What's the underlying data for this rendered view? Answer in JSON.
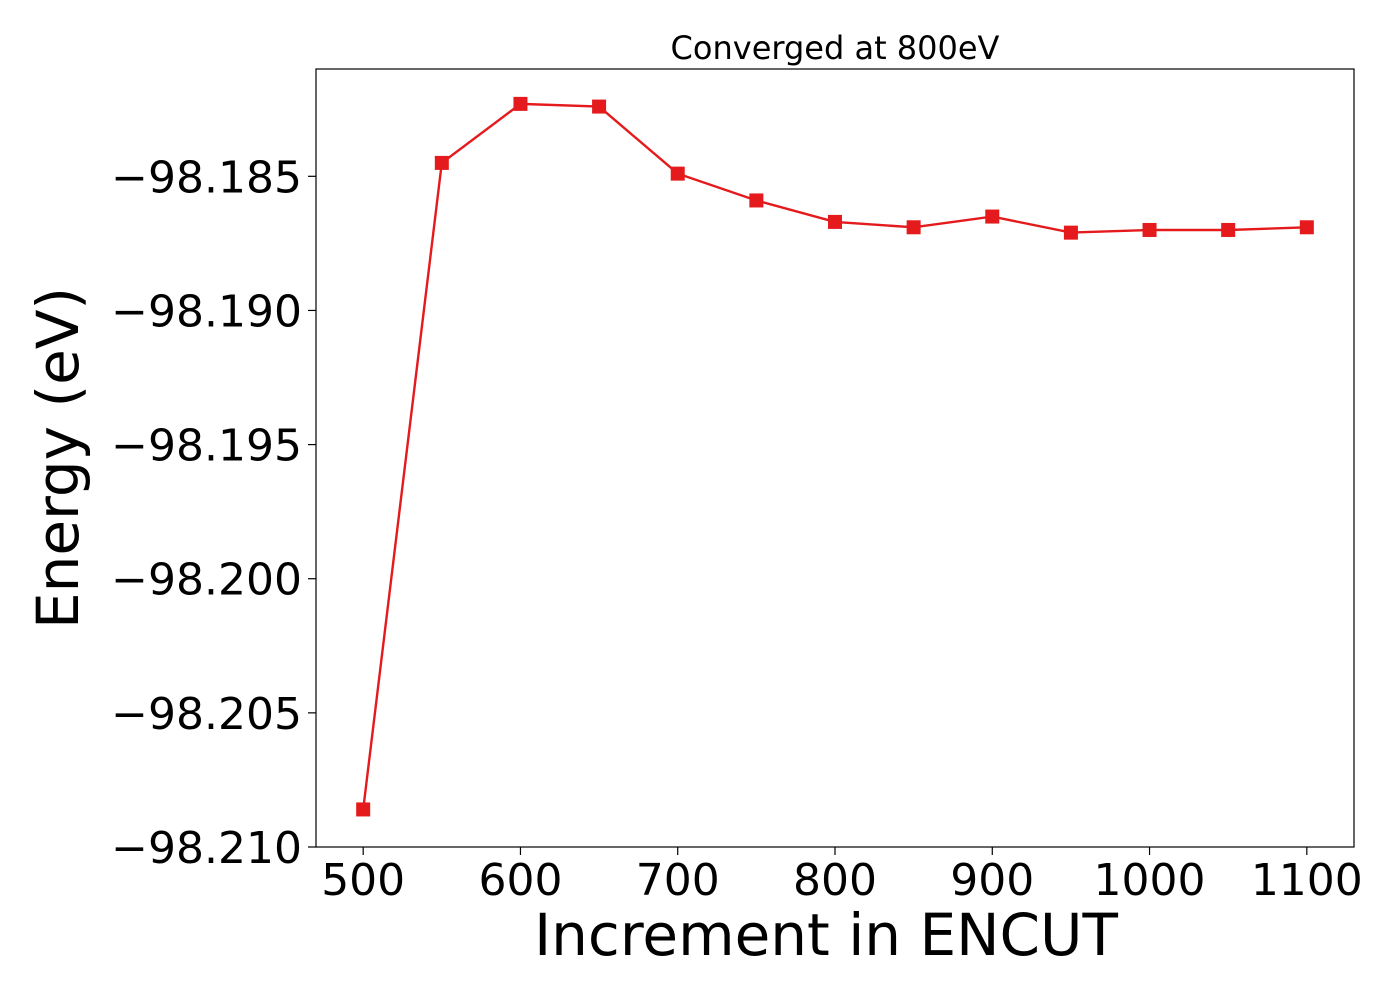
{
  "chart_data": {
    "type": "line",
    "title": "Converged at 800eV",
    "xlabel": "Increment in ENCUT",
    "ylabel": "Energy (eV)",
    "xlim": [
      470,
      1130
    ],
    "ylim": [
      -98.21,
      -98.181
    ],
    "xticks": [
      500,
      600,
      700,
      800,
      900,
      1000,
      1100
    ],
    "xtick_labels": [
      "500",
      "600",
      "700",
      "800",
      "900",
      "1000",
      "1100"
    ],
    "yticks": [
      -98.185,
      -98.19,
      -98.195,
      -98.2,
      -98.205,
      -98.21
    ],
    "ytick_labels": [
      "−98.185",
      "−98.190",
      "−98.195",
      "−98.200",
      "−98.205",
      "−98.210"
    ],
    "grid": false,
    "series": [
      {
        "color": "#e41a1c",
        "marker": "square",
        "x": [
          500,
          550,
          600,
          650,
          700,
          750,
          800,
          850,
          900,
          950,
          1000,
          1050,
          1100
        ],
        "y": [
          -98.2086,
          -98.1845,
          -98.1823,
          -98.1824,
          -98.1849,
          -98.1859,
          -98.1867,
          -98.1869,
          -98.1865,
          -98.1871,
          -98.187,
          -98.187,
          -98.1869
        ]
      }
    ]
  }
}
